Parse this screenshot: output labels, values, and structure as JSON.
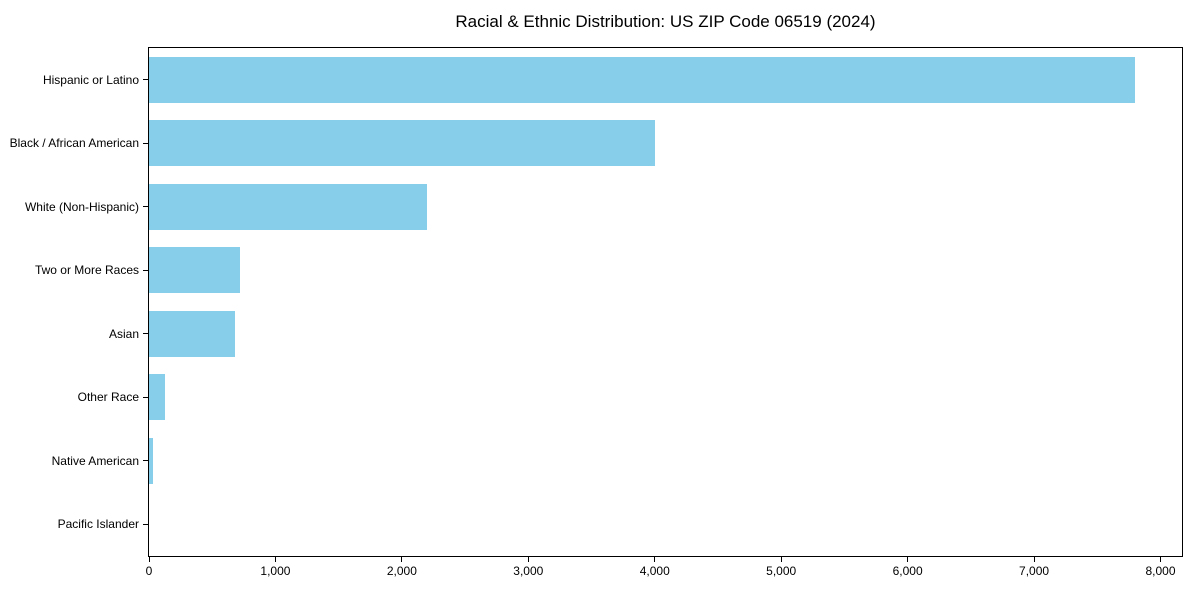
{
  "chart_data": {
    "type": "bar",
    "orientation": "horizontal",
    "title": "Racial & Ethnic Distribution: US ZIP Code 06519 (2024)",
    "categories": [
      "Hispanic or Latino",
      "Black / African American",
      "White (Non-Hispanic)",
      "Two or More Races",
      "Asian",
      "Other Race",
      "Native American",
      "Pacific Islander"
    ],
    "values": [
      7800,
      4000,
      2200,
      720,
      680,
      130,
      35,
      0
    ],
    "xlabel": "",
    "ylabel": "",
    "xlim": [
      0,
      8170
    ],
    "x_ticks": [
      0,
      1000,
      2000,
      3000,
      4000,
      5000,
      6000,
      7000,
      8000
    ],
    "x_tick_labels": [
      "0",
      "1,000",
      "2,000",
      "3,000",
      "4,000",
      "5,000",
      "6,000",
      "7,000",
      "8,000"
    ],
    "bar_color": "#87CEEB",
    "axis_color": "#000000",
    "background_color": "#ffffff",
    "grid": false,
    "legend": "none"
  }
}
